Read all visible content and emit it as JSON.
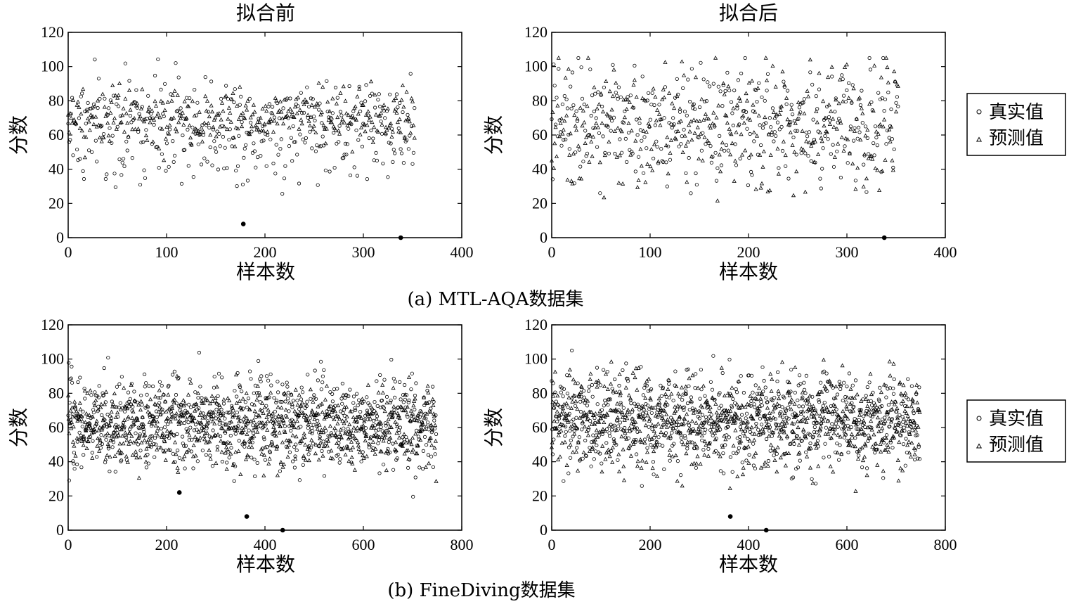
{
  "captions": {
    "a": "(a) MTL-AQA数据集",
    "b": "(b) FineDiving数据集"
  },
  "legend": {
    "true_label": "真实值",
    "pred_label": "预测值"
  },
  "chart_data": [
    {
      "id": "a-before",
      "type": "scatter",
      "title": "拟合前",
      "xlabel": "样本数",
      "ylabel": "分数",
      "xlim": [
        0,
        400
      ],
      "ylim": [
        0,
        120
      ],
      "xticks": [
        "0",
        "100",
        "200",
        "300",
        "400"
      ],
      "yticks": [
        "0",
        "20",
        "40",
        "60",
        "80",
        "100",
        "120"
      ],
      "series": [
        {
          "name": "真实值",
          "marker": "circle",
          "n": 352,
          "x_range": [
            0,
            352
          ],
          "y_mean": 64,
          "y_sd": 16
        },
        {
          "name": "预测值",
          "marker": "triangle",
          "n": 352,
          "x_range": [
            0,
            352
          ],
          "y_mean": 70,
          "y_sd": 8
        }
      ],
      "filled_points": [
        [
          178,
          8
        ],
        [
          338,
          0
        ]
      ]
    },
    {
      "id": "a-after",
      "type": "scatter",
      "title": "拟合后",
      "xlabel": "样本数",
      "ylabel": "分数",
      "xlim": [
        0,
        400
      ],
      "ylim": [
        0,
        120
      ],
      "xticks": [
        "0",
        "100",
        "200",
        "300",
        "400"
      ],
      "yticks": [
        "0",
        "20",
        "40",
        "60",
        "80",
        "100",
        "120"
      ],
      "series": [
        {
          "name": "真实值",
          "marker": "circle",
          "n": 352,
          "x_range": [
            0,
            352
          ],
          "y_mean": 66,
          "y_sd": 17
        },
        {
          "name": "预测值",
          "marker": "triangle",
          "n": 352,
          "x_range": [
            0,
            352
          ],
          "y_mean": 66,
          "y_sd": 18
        }
      ],
      "filled_points": [
        [
          338,
          0
        ]
      ]
    },
    {
      "id": "b-before",
      "type": "scatter",
      "title": "",
      "xlabel": "样本数",
      "ylabel": "分数",
      "xlim": [
        0,
        800
      ],
      "ylim": [
        0,
        120
      ],
      "xticks": [
        "0",
        "200",
        "400",
        "600",
        "800"
      ],
      "yticks": [
        "0",
        "20",
        "40",
        "60",
        "80",
        "100",
        "120"
      ],
      "series": [
        {
          "name": "真实值",
          "marker": "circle",
          "n": 748,
          "x_range": [
            0,
            748
          ],
          "y_mean": 64,
          "y_sd": 14
        },
        {
          "name": "预测值",
          "marker": "triangle",
          "n": 748,
          "x_range": [
            0,
            748
          ],
          "y_mean": 60,
          "y_sd": 11
        }
      ],
      "filled_points": [
        [
          226,
          22
        ],
        [
          363,
          8
        ],
        [
          436,
          0
        ]
      ]
    },
    {
      "id": "b-after",
      "type": "scatter",
      "title": "",
      "xlabel": "样本数",
      "ylabel": "分数",
      "xlim": [
        0,
        800
      ],
      "ylim": [
        0,
        120
      ],
      "xticks": [
        "0",
        "200",
        "400",
        "600",
        "800"
      ],
      "yticks": [
        "0",
        "20",
        "40",
        "60",
        "80",
        "100",
        "120"
      ],
      "series": [
        {
          "name": "真实值",
          "marker": "circle",
          "n": 748,
          "x_range": [
            0,
            748
          ],
          "y_mean": 64,
          "y_sd": 14
        },
        {
          "name": "预测值",
          "marker": "triangle",
          "n": 748,
          "x_range": [
            0,
            748
          ],
          "y_mean": 64,
          "y_sd": 14
        }
      ],
      "filled_points": [
        [
          363,
          8
        ],
        [
          436,
          0
        ]
      ]
    }
  ]
}
